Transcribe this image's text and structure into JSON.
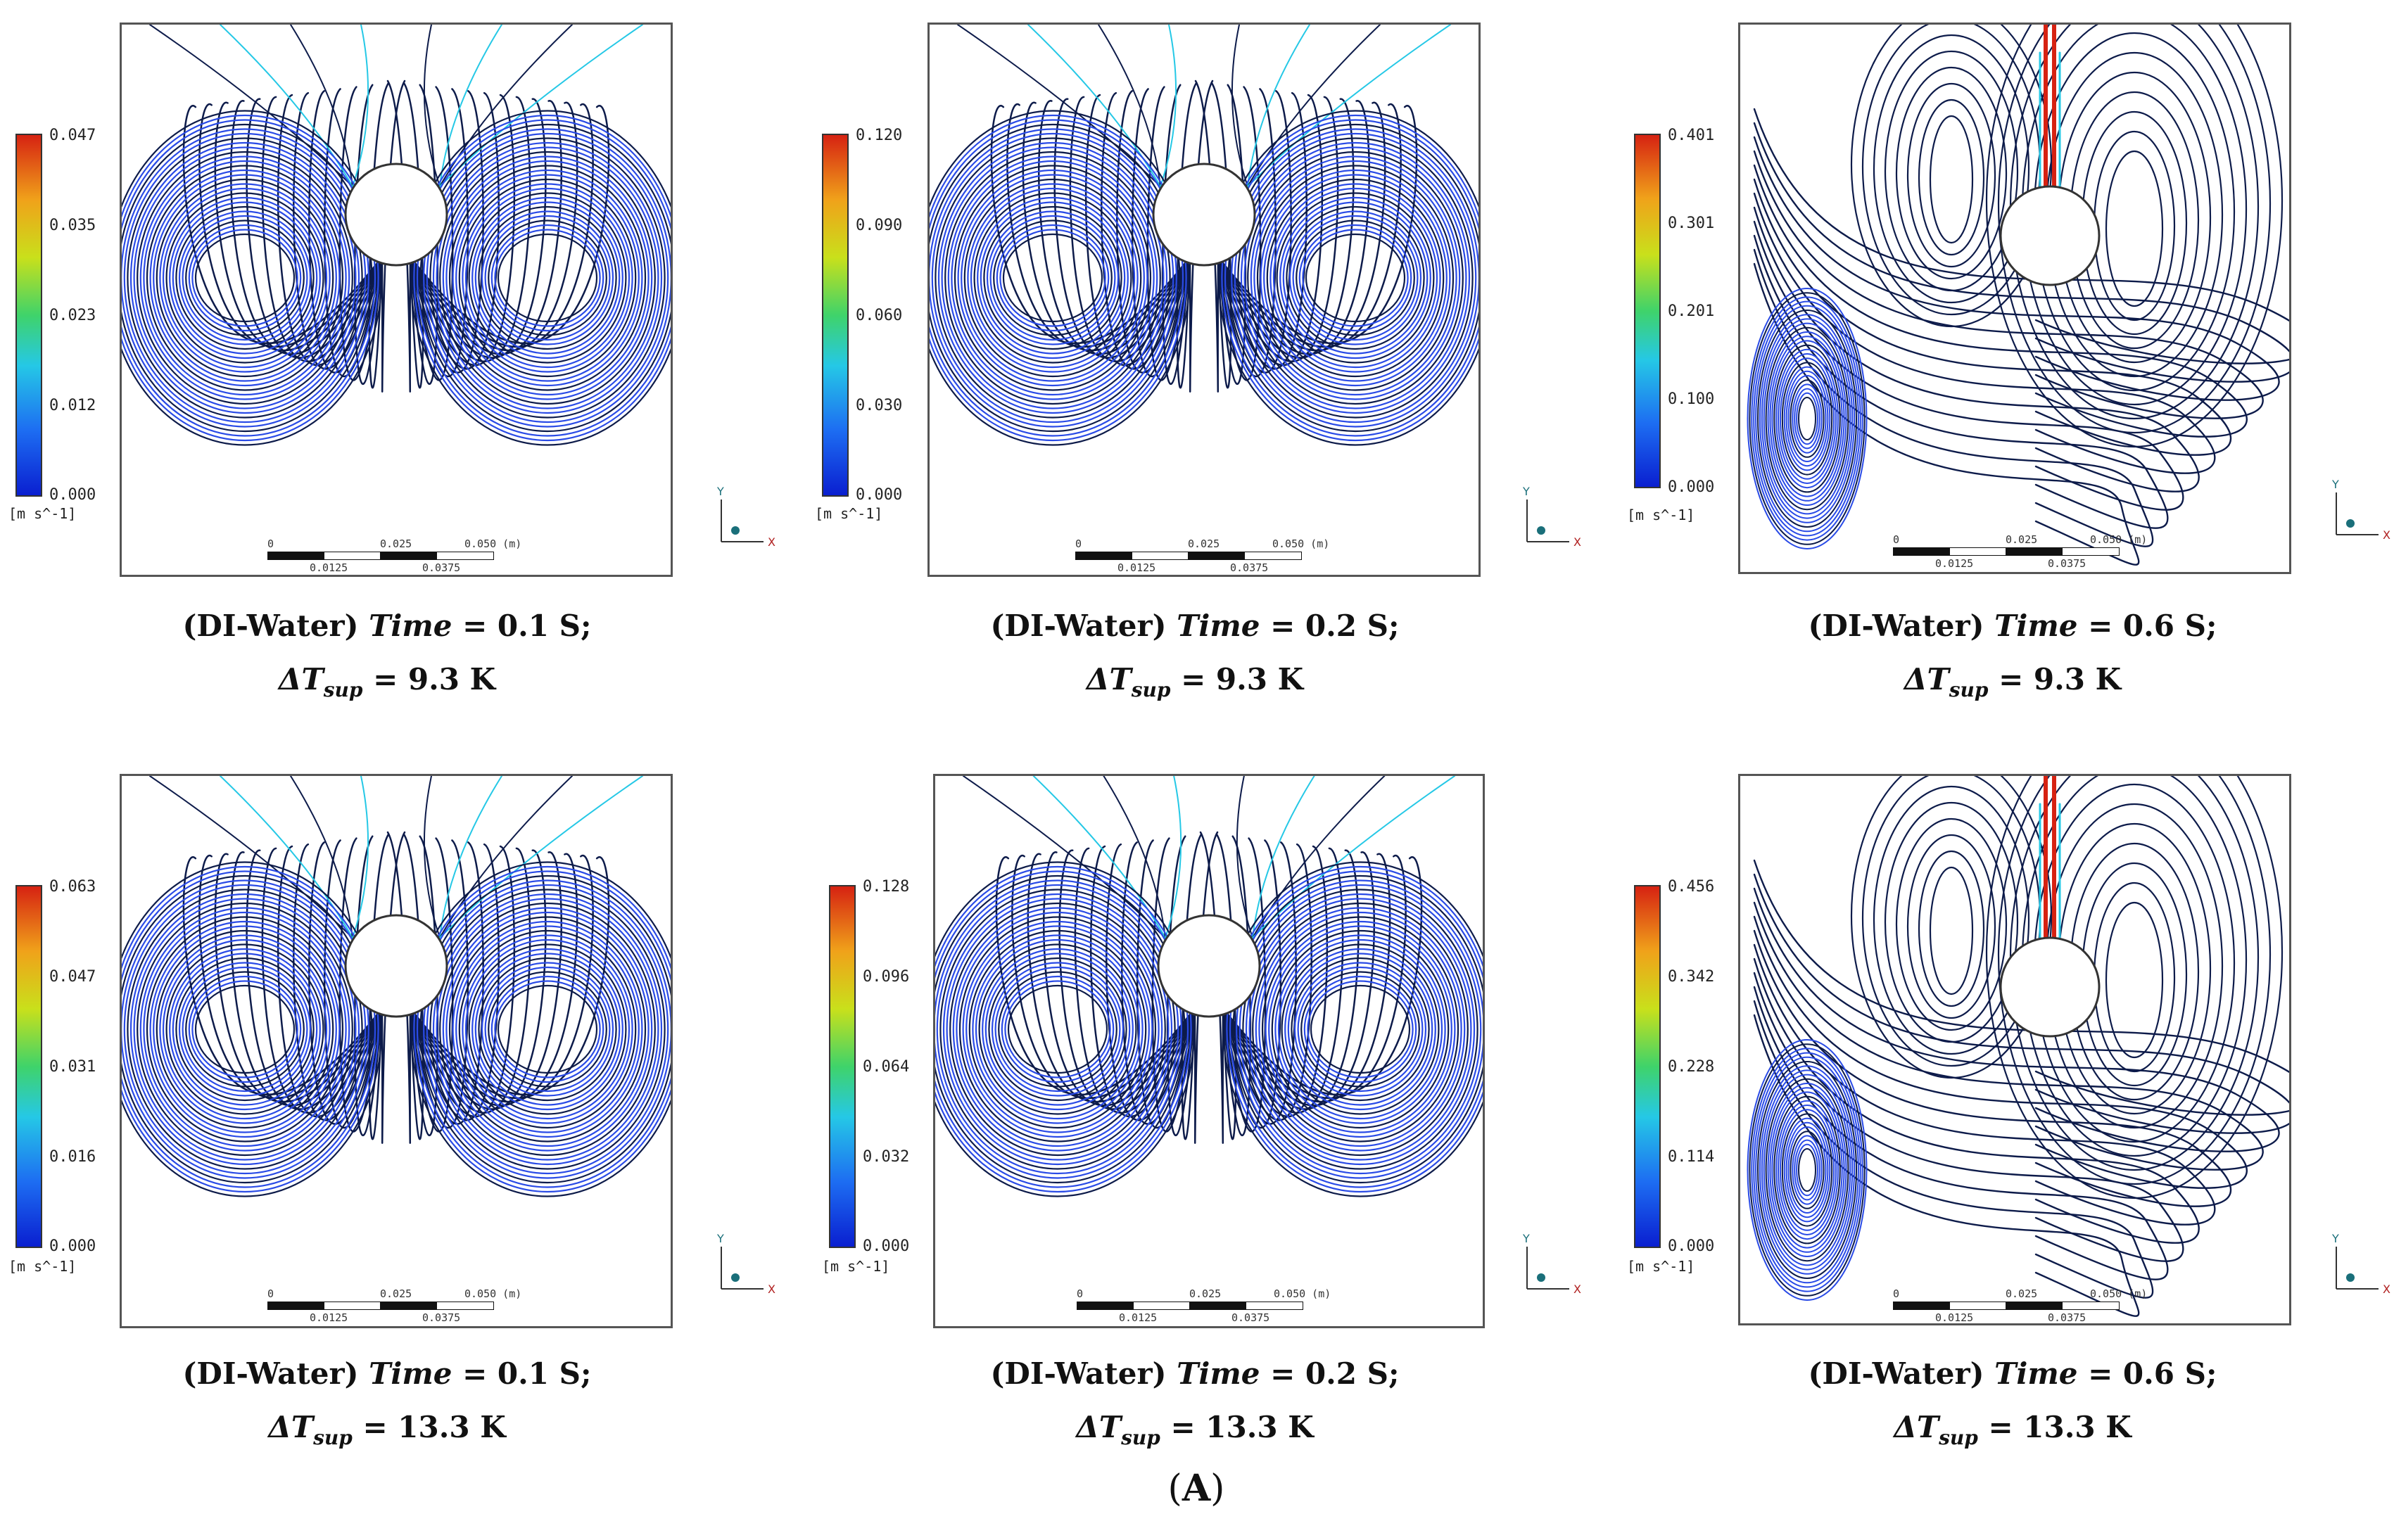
{
  "figure_label": "A",
  "colors": {
    "streamline_dark": "#0d1b4a",
    "streamline_blue": "#1a3fe0",
    "vortex_fill": "#2a4be6",
    "jet_hot": "#d62212",
    "jet_cyan": "#25c8e6",
    "frame": "#555555"
  },
  "panels": [
    {
      "id": "r1c1",
      "kind": "symmetric",
      "colorbar": {
        "ticks": [
          "0.047",
          "0.035",
          "0.023",
          "0.012",
          "0.000"
        ],
        "unit": "[m s^-1]"
      },
      "caption": {
        "prefix": "(DI-Water)",
        "time_word": "Time",
        "time_value": "= 0.1 S;",
        "dt_symbol": "ΔT",
        "dt_sub": "sup",
        "dt_value": "= 9.3 K"
      }
    },
    {
      "id": "r1c2",
      "kind": "symmetric",
      "colorbar": {
        "ticks": [
          "0.120",
          "0.090",
          "0.060",
          "0.030",
          "0.000"
        ],
        "unit": "[m s^-1]"
      },
      "caption": {
        "prefix": "(DI-Water)",
        "time_word": "Time",
        "time_value": "= 0.2 S;",
        "dt_symbol": "ΔT",
        "dt_sub": "sup",
        "dt_value": "= 9.3 K"
      }
    },
    {
      "id": "r1c3",
      "kind": "asymmetric",
      "colorbar": {
        "ticks": [
          "0.401",
          "0.301",
          "0.201",
          "0.100",
          "0.000"
        ],
        "unit": "[m s^-1]"
      },
      "caption": {
        "prefix": "(DI-Water)",
        "time_word": "Time",
        "time_value": "= 0.6 S;",
        "dt_symbol": "ΔT",
        "dt_sub": "sup",
        "dt_value": "= 9.3 K"
      }
    },
    {
      "id": "r2c1",
      "kind": "symmetric",
      "colorbar": {
        "ticks": [
          "0.063",
          "0.047",
          "0.031",
          "0.016",
          "0.000"
        ],
        "unit": "[m s^-1]"
      },
      "caption": {
        "prefix": "(DI-Water)",
        "time_word": "Time",
        "time_value": "= 0.1 S;",
        "dt_symbol": "ΔT",
        "dt_sub": "sup",
        "dt_value": "= 13.3 K"
      }
    },
    {
      "id": "r2c2",
      "kind": "symmetric",
      "colorbar": {
        "ticks": [
          "0.128",
          "0.096",
          "0.064",
          "0.032",
          "0.000"
        ],
        "unit": "[m s^-1]"
      },
      "caption": {
        "prefix": "(DI-Water)",
        "time_word": "Time",
        "time_value": "= 0.2 S;",
        "dt_symbol": "ΔT",
        "dt_sub": "sup",
        "dt_value": "= 13.3 K"
      }
    },
    {
      "id": "r2c3",
      "kind": "asymmetric",
      "colorbar": {
        "ticks": [
          "0.456",
          "0.342",
          "0.228",
          "0.114",
          "0.000"
        ],
        "unit": "[m s^-1]"
      },
      "caption": {
        "prefix": "(DI-Water)",
        "time_word": "Time",
        "time_value": "= 0.6 S;",
        "dt_symbol": "ΔT",
        "dt_sub": "sup",
        "dt_value": "= 13.3 K"
      }
    }
  ],
  "scale_bar": {
    "labels_top": [
      "0",
      "0.025",
      "0.050 (m)"
    ],
    "labels_bottom": [
      "0.0125",
      "0.0375"
    ]
  },
  "axes": {
    "x": "X",
    "y": "Y"
  }
}
